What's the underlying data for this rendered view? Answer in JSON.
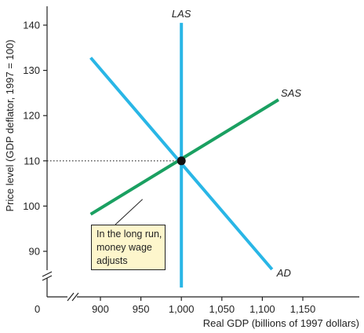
{
  "chart_data": {
    "type": "line",
    "xlabel": "Real GDP (billions of 1997 dollars)",
    "ylabel": "Price level (GDP deflator, 1997 = 100)",
    "xlim": [
      880,
      1175
    ],
    "ylim": [
      82,
      145
    ],
    "x_origin_label": "0",
    "axis_breaks": [
      "x",
      "y"
    ],
    "x_ticks": [
      {
        "value": 900,
        "label": "900"
      },
      {
        "value": 950,
        "label": "950"
      },
      {
        "value": 1000,
        "label": "1,000"
      },
      {
        "value": 1050,
        "label": "1,050"
      },
      {
        "value": 1100,
        "label": "1,100"
      },
      {
        "value": 1150,
        "label": "1,150"
      }
    ],
    "y_ticks": [
      {
        "value": 90,
        "label": "90"
      },
      {
        "value": 100,
        "label": "100"
      },
      {
        "value": 110,
        "label": "110"
      },
      {
        "value": 120,
        "label": "120"
      },
      {
        "value": 130,
        "label": "130"
      },
      {
        "value": 140,
        "label": "140"
      }
    ],
    "series": [
      {
        "name": "LAS",
        "color": "#29b6e6",
        "points": [
          [
            1000,
            82
          ],
          [
            1000,
            140.5
          ]
        ]
      },
      {
        "name": "SAS",
        "color": "#1aa061",
        "points": [
          [
            888,
            98.2
          ],
          [
            1120,
            123.5
          ]
        ]
      },
      {
        "name": "AD",
        "color": "#29b6e6",
        "points": [
          [
            888,
            132.8
          ],
          [
            1112,
            86
          ]
        ]
      }
    ],
    "equilibrium": {
      "x": 1000,
      "y": 110
    },
    "reference_line": {
      "y": 110,
      "style": "dotted"
    },
    "annotation": {
      "lines": [
        "In the long run,",
        "money wage",
        "adjusts"
      ],
      "points_to": [
        952,
        101.5
      ]
    }
  }
}
